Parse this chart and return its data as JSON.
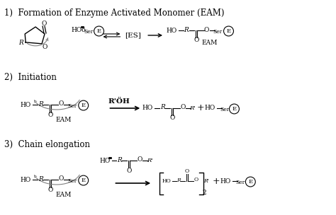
{
  "background": "#ffffff",
  "section1_label": "1)  Formation of Enzyme Activated Monomer (EAM)",
  "section2_label": "2)  Initiation",
  "section3_label": "3)  Chain elongation",
  "figsize": [
    4.74,
    3.04
  ],
  "dpi": 100
}
